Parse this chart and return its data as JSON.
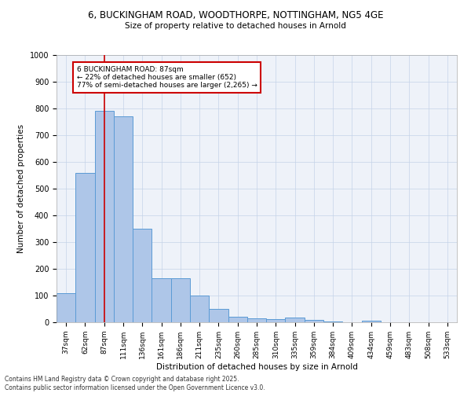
{
  "title_line1": "6, BUCKINGHAM ROAD, WOODTHORPE, NOTTINGHAM, NG5 4GE",
  "title_line2": "Size of property relative to detached houses in Arnold",
  "xlabel": "Distribution of detached houses by size in Arnold",
  "ylabel": "Number of detached properties",
  "categories": [
    "37sqm",
    "62sqm",
    "87sqm",
    "111sqm",
    "136sqm",
    "161sqm",
    "186sqm",
    "211sqm",
    "235sqm",
    "260sqm",
    "285sqm",
    "310sqm",
    "335sqm",
    "359sqm",
    "384sqm",
    "409sqm",
    "434sqm",
    "459sqm",
    "483sqm",
    "508sqm",
    "533sqm"
  ],
  "values": [
    110,
    560,
    790,
    770,
    350,
    165,
    165,
    100,
    50,
    20,
    15,
    12,
    18,
    10,
    2,
    0,
    5,
    0,
    0,
    0,
    0
  ],
  "bar_color": "#aec6e8",
  "bar_edge_color": "#5b9bd5",
  "highlight_index": 2,
  "highlight_line_color": "#cc0000",
  "ylim": [
    0,
    1000
  ],
  "yticks": [
    0,
    100,
    200,
    300,
    400,
    500,
    600,
    700,
    800,
    900,
    1000
  ],
  "annotation_text": "6 BUCKINGHAM ROAD: 87sqm\n← 22% of detached houses are smaller (652)\n77% of semi-detached houses are larger (2,265) →",
  "annotation_box_color": "#ffffff",
  "annotation_box_edge_color": "#cc0000",
  "background_color": "#eef2f9",
  "footer_line1": "Contains HM Land Registry data © Crown copyright and database right 2025.",
  "footer_line2": "Contains public sector information licensed under the Open Government Licence v3.0."
}
